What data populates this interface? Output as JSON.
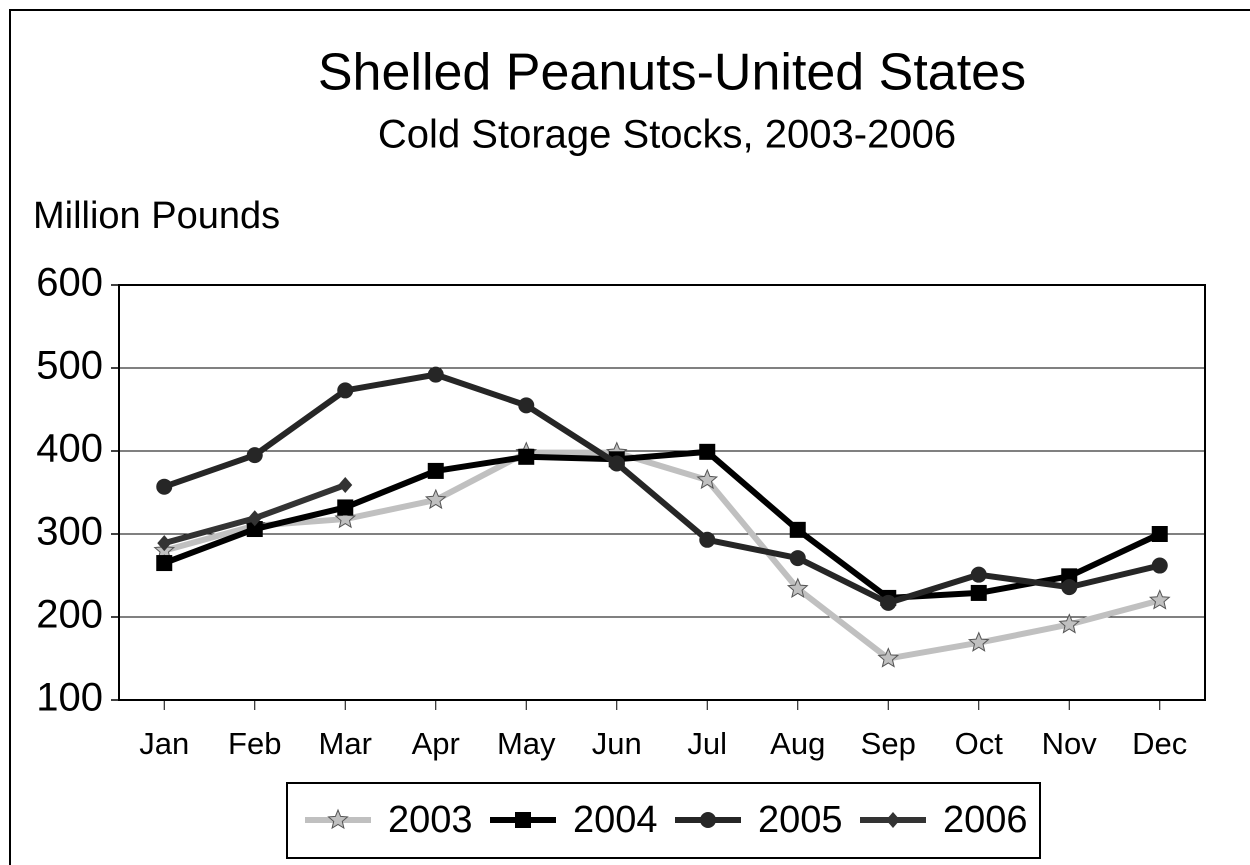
{
  "chart_data": {
    "type": "line",
    "title": "Shelled Peanuts-United States",
    "subtitle": "Cold Storage Stocks, 2003-2006",
    "y_label": "Million Pounds",
    "categories": [
      "Jan",
      "Feb",
      "Mar",
      "Apr",
      "May",
      "Jun",
      "Jul",
      "Aug",
      "Sep",
      "Oct",
      "Nov",
      "Dec"
    ],
    "series": [
      {
        "name": "2003",
        "color": "#c0c0c0",
        "marker": "star",
        "values": [
          280,
          310,
          318,
          341,
          398,
          398,
          365,
          234,
          150,
          169,
          191,
          220
        ]
      },
      {
        "name": "2004",
        "color": "#000000",
        "marker": "square",
        "values": [
          265,
          306,
          332,
          376,
          393,
          390,
          399,
          305,
          223,
          229,
          249,
          300
        ]
      },
      {
        "name": "2005",
        "color": "#262626",
        "marker": "circle",
        "values": [
          357,
          395,
          473,
          492,
          455,
          385,
          293,
          271,
          217,
          251,
          236,
          262
        ]
      },
      {
        "name": "2006",
        "color": "#333333",
        "marker": "diamond",
        "values": [
          289,
          319,
          359,
          null,
          null,
          null,
          null,
          null,
          null,
          null,
          null,
          null
        ]
      }
    ],
    "ylim": [
      100,
      600
    ],
    "yticks": [
      100,
      200,
      300,
      400,
      500,
      600
    ],
    "grid": true
  }
}
